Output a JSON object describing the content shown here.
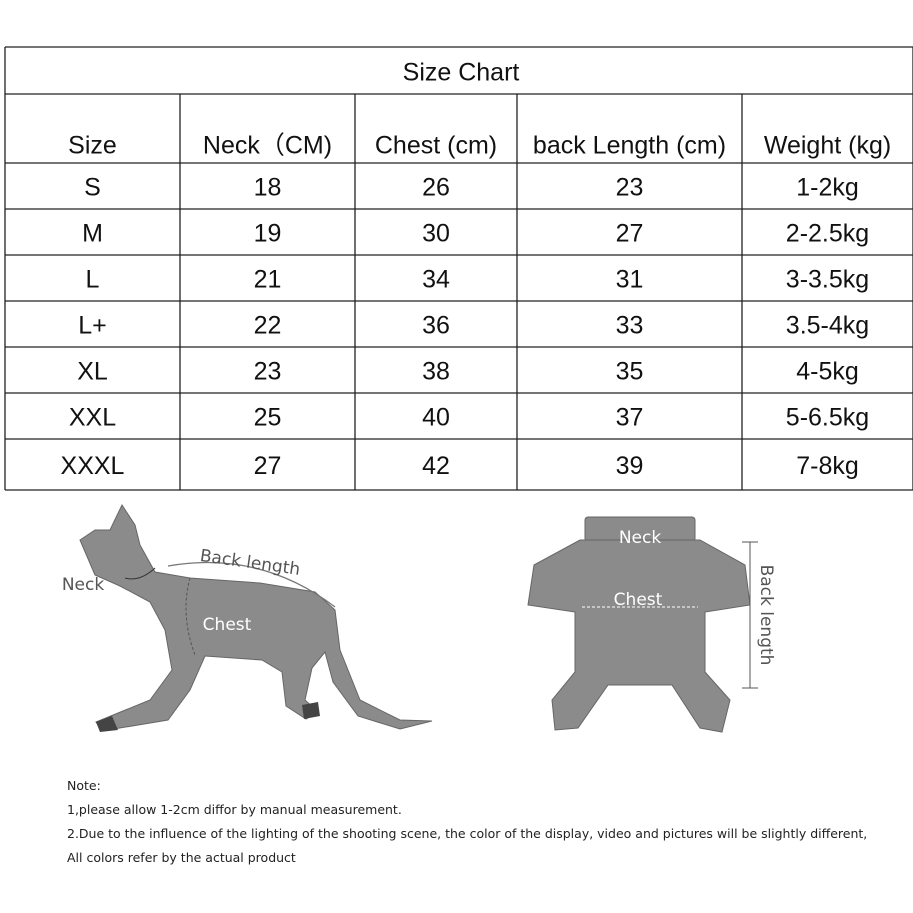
{
  "table": {
    "title": "Size Chart",
    "header": [
      "Size",
      "Neck（CM)",
      "Chest (cm)",
      "back Length (cm)",
      "Weight (kg)"
    ],
    "rows": [
      [
        "S",
        18,
        26,
        23,
        "1-2kg"
      ],
      [
        "M",
        19,
        30,
        27,
        "2-2.5kg"
      ],
      [
        "L",
        21,
        34,
        31,
        "3-3.5kg"
      ],
      [
        "L+",
        22,
        36,
        33,
        "3.5-4kg"
      ],
      [
        "XL",
        23,
        38,
        35,
        "4-5kg"
      ],
      [
        "XXL",
        25,
        40,
        37,
        "5-6.5kg"
      ],
      [
        "XXXL",
        27,
        42,
        39,
        "7-8kg"
      ]
    ]
  },
  "illustrations": {
    "cat": {
      "neck": "Neck",
      "back_length": "Back length",
      "chest": "Chest"
    },
    "garment": {
      "neck": "Neck",
      "chest": "Chest",
      "back_length": "Back length"
    }
  },
  "notes": [
    "Note:",
    "1,please allow 1-2cm  diffor by manual measurement.",
    "2.Due to the influence of the lighting of the shooting scene, the color of the display,  video and pictures will be slightly different,",
    "All colors refer by the actual product"
  ]
}
